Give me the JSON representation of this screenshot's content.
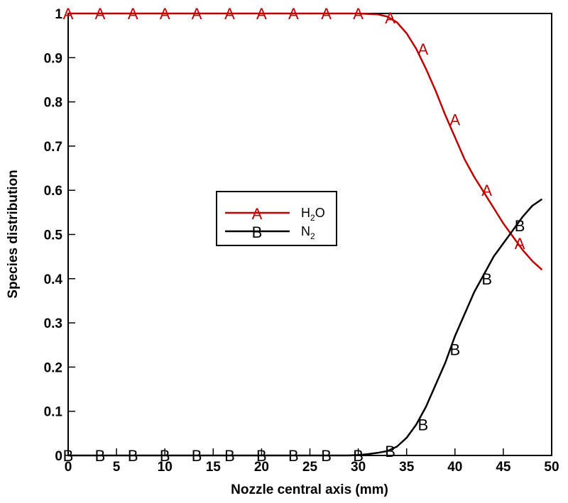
{
  "chart_data": {
    "type": "line",
    "xlabel": "Nozzle central axis (mm)",
    "ylabel": "Species distribution",
    "xlim": [
      0,
      50
    ],
    "ylim": [
      0,
      1
    ],
    "xticks": [
      0,
      5,
      10,
      15,
      20,
      25,
      30,
      35,
      40,
      45,
      50
    ],
    "yticks": [
      0,
      0.1,
      0.2,
      0.3,
      0.4,
      0.5,
      0.6,
      0.7,
      0.8,
      0.9,
      1
    ],
    "grid": false,
    "legend_position": "center-right",
    "series": [
      {
        "name": "H2O",
        "legend_main": "H",
        "legend_sub": "2",
        "legend_tail": "O",
        "marker": "A",
        "color": "#c00000",
        "x": [
          0,
          5,
          10,
          15,
          20,
          25,
          30,
          32,
          33,
          34,
          35,
          36,
          37,
          38,
          39,
          40,
          41,
          42,
          43,
          44,
          45,
          46,
          47,
          48,
          49
        ],
        "y": [
          1,
          1,
          1,
          1,
          1,
          1,
          1,
          0.998,
          0.993,
          0.98,
          0.955,
          0.92,
          0.875,
          0.825,
          0.77,
          0.72,
          0.67,
          0.63,
          0.595,
          0.56,
          0.525,
          0.495,
          0.465,
          0.44,
          0.42
        ],
        "marker_x": [
          0,
          3.3,
          6.7,
          10,
          13.3,
          16.7,
          20,
          23.3,
          26.7,
          30,
          33.3,
          36.7,
          40,
          43.3,
          46.7
        ],
        "marker_y": [
          1,
          1,
          1,
          1,
          1,
          1,
          1,
          1,
          1,
          1,
          0.99,
          0.92,
          0.76,
          0.6,
          0.48
        ]
      },
      {
        "name": "N2",
        "legend_main": "N",
        "legend_sub": "2",
        "legend_tail": "",
        "marker": "B",
        "color": "#000000",
        "x": [
          0,
          5,
          10,
          15,
          20,
          25,
          29,
          30,
          31,
          32,
          33,
          34,
          35,
          36,
          37,
          38,
          39,
          40,
          41,
          42,
          43,
          44,
          45,
          46,
          47,
          48,
          49
        ],
        "y": [
          0,
          0,
          0,
          0,
          0,
          0,
          0,
          0.001,
          0.003,
          0.006,
          0.01,
          0.02,
          0.04,
          0.07,
          0.11,
          0.16,
          0.21,
          0.27,
          0.32,
          0.37,
          0.41,
          0.45,
          0.48,
          0.51,
          0.54,
          0.565,
          0.58
        ],
        "marker_x": [
          0,
          3.3,
          6.7,
          10,
          13.3,
          16.7,
          20,
          23.3,
          26.7,
          30,
          33.3,
          36.7,
          40,
          43.3,
          46.7
        ],
        "marker_y": [
          0,
          0,
          0,
          0,
          0,
          0,
          0,
          0,
          0,
          0,
          0.01,
          0.07,
          0.24,
          0.4,
          0.52
        ]
      }
    ]
  }
}
